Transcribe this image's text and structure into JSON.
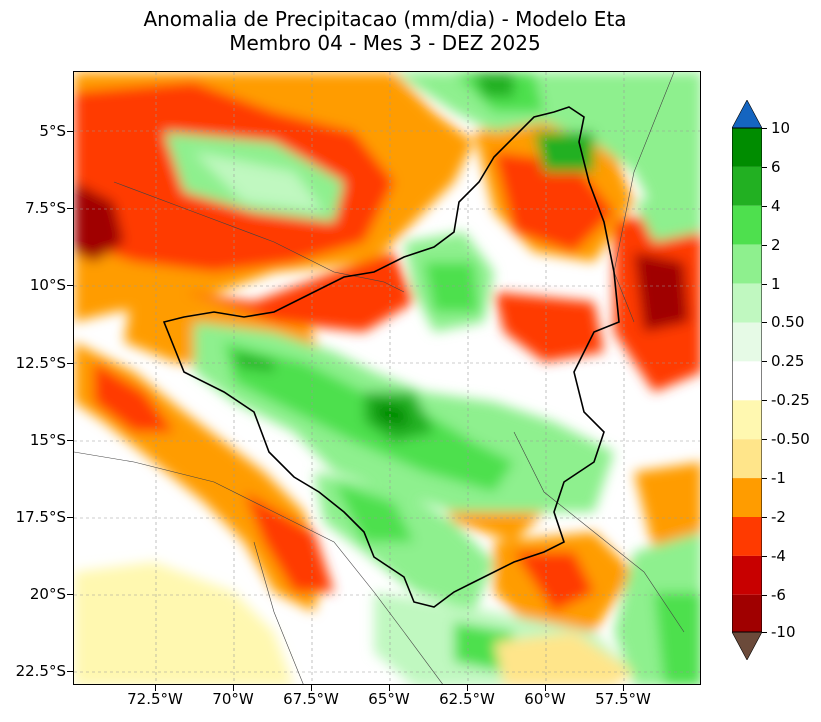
{
  "title": {
    "line1": "Anomalia de Precipitacao (mm/dia) - Modelo Eta",
    "line2": "Membro 04 - Mes 3 - DEZ 2025"
  },
  "axes": {
    "y_ticks": [
      "5°S",
      "7.5°S",
      "10°S",
      "12.5°S",
      "15°S",
      "17.5°S",
      "20°S",
      "22.5°S"
    ],
    "x_ticks": [
      "72.5°W",
      "70°W",
      "67.5°W",
      "65°W",
      "62.5°W",
      "60°W",
      "57.5°W"
    ]
  },
  "colorbar": {
    "labels": [
      "10",
      "6",
      "4",
      "2",
      "1",
      "0.50",
      "0.25",
      "-0.25",
      "-0.50",
      "-1",
      "-2",
      "-4",
      "-6",
      "-10"
    ],
    "colors": [
      "#1565c0",
      "#008c00",
      "#22b022",
      "#4ee04e",
      "#8ef08e",
      "#c0f8c0",
      "#e6fae6",
      "#ffffff",
      "#fff8b0",
      "#ffe58a",
      "#ff9c00",
      "#ff3a00",
      "#c80000",
      "#a00000",
      "#6b4a3a"
    ]
  }
}
